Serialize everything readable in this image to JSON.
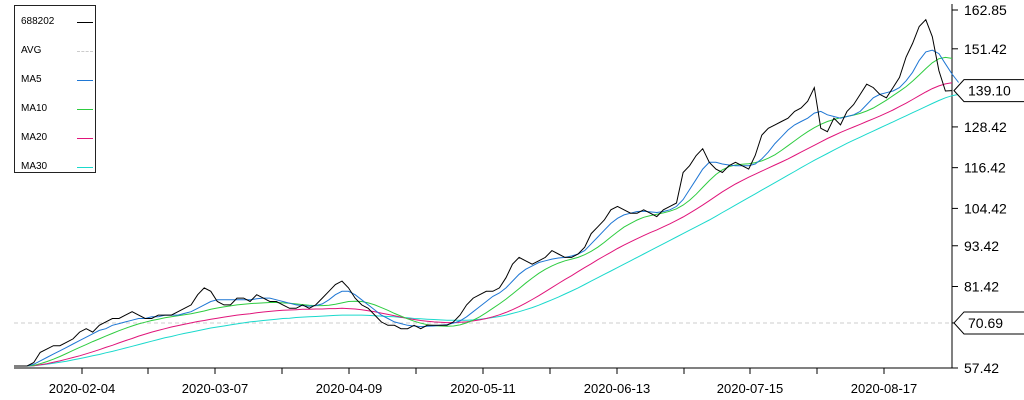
{
  "chart_data": {
    "type": "line",
    "x_tick_labels": [
      "2020-02-04",
      "2020-03-07",
      "2020-04-09",
      "2020-05-11",
      "2020-06-13",
      "2020-07-15",
      "2020-08-17"
    ],
    "y_tick_labels": [
      "162.85",
      "151.42",
      "139.10",
      "128.42",
      "116.42",
      "104.42",
      "93.42",
      "81.42",
      "70.69",
      "57.42"
    ],
    "ylim": [
      57.42,
      162.85
    ],
    "avg_value": 70.69,
    "last_value": 139.1,
    "legend": [
      {
        "name": "688202",
        "color": "#000000"
      },
      {
        "name": "AVG",
        "color": "#cccccc"
      },
      {
        "name": "MA5",
        "color": "#1f77d4"
      },
      {
        "name": "MA10",
        "color": "#2ecc40"
      },
      {
        "name": "MA20",
        "color": "#e0147a"
      },
      {
        "name": "MA30",
        "color": "#1ad9cc"
      }
    ],
    "series": [
      {
        "name": "688202",
        "color": "#000000",
        "values": [
          58,
          58,
          58,
          59,
          62,
          63,
          64,
          64,
          65,
          66,
          68,
          69,
          68,
          70,
          71,
          72,
          72,
          73,
          74,
          73,
          72,
          72,
          73,
          73,
          73,
          74,
          75,
          76,
          79,
          81,
          80,
          77,
          76,
          76,
          78,
          78,
          77,
          79,
          78,
          77,
          77,
          76,
          75,
          75,
          76,
          75,
          76,
          78,
          80,
          82,
          83,
          81,
          78,
          76,
          75,
          73,
          71,
          70,
          70,
          69,
          69,
          70,
          69,
          70,
          70,
          70,
          70,
          71,
          73,
          76,
          78,
          79,
          80,
          80,
          81,
          84,
          88,
          90,
          89,
          88,
          89,
          90,
          92,
          91,
          90,
          90,
          91,
          93,
          97,
          99,
          101,
          104,
          105,
          104,
          103,
          103,
          104,
          103,
          102,
          104,
          105,
          106,
          115,
          117,
          120,
          122,
          118,
          116,
          115,
          117,
          118,
          117,
          116,
          120,
          126,
          128,
          129,
          130,
          131,
          133,
          134,
          136,
          140,
          128,
          127,
          131,
          129,
          133,
          135,
          138,
          141,
          140,
          138,
          137,
          140,
          143,
          149,
          153,
          158,
          160,
          155,
          145,
          139,
          139.1
        ]
      },
      {
        "name": "MA5",
        "color": "#1f77d4",
        "values": [
          58,
          58,
          58,
          58.5,
          59.5,
          60.5,
          61.5,
          62.5,
          63.5,
          64.5,
          65.5,
          66.5,
          67.5,
          68.5,
          69,
          70,
          70.5,
          71,
          71.5,
          72,
          72,
          72.5,
          72.5,
          73,
          73,
          73,
          73.5,
          74,
          75,
          76,
          77,
          77.5,
          77.5,
          77.5,
          77.5,
          77.5,
          77.5,
          77.8,
          78,
          78,
          77.5,
          77,
          76.5,
          76,
          75.8,
          75.6,
          75.8,
          76.3,
          77.5,
          79,
          80,
          80,
          79,
          77.5,
          76,
          74.5,
          73,
          72,
          71,
          70.5,
          70,
          69.8,
          69.6,
          69.7,
          69.8,
          70,
          70.2,
          70.6,
          71.3,
          72.5,
          74,
          75.5,
          77,
          78.5,
          79.5,
          81,
          83,
          85,
          86.5,
          87.5,
          88.5,
          89,
          89.5,
          89.8,
          90,
          90.4,
          91,
          92,
          94,
          96,
          98,
          100,
          101.5,
          102.5,
          103,
          103.5,
          103.6,
          103.4,
          103.2,
          103.5,
          104,
          105,
          107,
          110,
          113,
          116,
          118,
          118,
          117.5,
          117.2,
          117,
          117,
          117,
          117.5,
          119,
          121,
          123.5,
          125.5,
          127.5,
          129,
          130,
          131,
          132.5,
          133,
          132,
          131.5,
          131,
          131.5,
          132,
          133,
          135,
          137,
          138,
          138.5,
          139,
          140,
          142,
          144.5,
          148,
          150.5,
          151,
          150,
          147,
          144,
          141.5
        ]
      },
      {
        "name": "MA10",
        "color": "#2ecc40",
        "values": [
          58,
          58,
          58,
          58.2,
          58.7,
          59.3,
          60,
          60.8,
          61.7,
          62.6,
          63.5,
          64.3,
          65.2,
          66,
          66.8,
          67.6,
          68.4,
          69.1,
          69.8,
          70.4,
          70.9,
          71.4,
          71.8,
          72.2,
          72.5,
          72.8,
          73.1,
          73.4,
          73.8,
          74.2,
          74.7,
          75.1,
          75.4,
          75.7,
          76,
          76.2,
          76.4,
          76.5,
          76.6,
          76.7,
          76.7,
          76.6,
          76.5,
          76.3,
          76.1,
          75.9,
          75.8,
          75.8,
          75.9,
          76.2,
          76.6,
          77,
          77.1,
          77,
          76.6,
          76,
          75.2,
          74.4,
          73.5,
          72.7,
          71.9,
          71.2,
          70.6,
          70.2,
          69.9,
          69.8,
          69.7,
          69.8,
          70.1,
          70.7,
          71.5,
          72.5,
          73.7,
          75,
          76.3,
          77.7,
          79.2,
          80.8,
          82.4,
          83.9,
          85.3,
          86.5,
          87.5,
          88.3,
          89,
          89.5,
          90,
          90.8,
          91.8,
          93,
          94.4,
          96,
          97.5,
          98.9,
          100,
          101,
          101.8,
          102.3,
          102.7,
          103.1,
          103.6,
          104.3,
          105.4,
          106.8,
          108.6,
          110.6,
          112.6,
          114.4,
          115.8,
          116.7,
          117.2,
          117.4,
          117.6,
          117.9,
          118.4,
          119.2,
          120.2,
          121.5,
          122.9,
          124.3,
          125.7,
          127,
          128.2,
          129.2,
          130,
          130.6,
          131.1,
          131.5,
          131.9,
          132.4,
          133.1,
          134,
          135.1,
          136.3,
          137.6,
          138.9,
          140.3,
          141.9,
          143.7,
          145.6,
          147.3,
          148.5,
          148.9,
          148.6
        ]
      },
      {
        "name": "MA20",
        "color": "#e0147a",
        "values": [
          58,
          58,
          58,
          58.1,
          58.4,
          58.7,
          59.1,
          59.5,
          60,
          60.5,
          61,
          61.6,
          62.2,
          62.8,
          63.5,
          64.1,
          64.8,
          65.5,
          66.1,
          66.8,
          67.4,
          68,
          68.5,
          69,
          69.5,
          69.9,
          70.3,
          70.7,
          71.1,
          71.4,
          71.8,
          72.1,
          72.4,
          72.7,
          73,
          73.2,
          73.4,
          73.7,
          73.9,
          74.1,
          74.3,
          74.4,
          74.5,
          74.6,
          74.7,
          74.7,
          74.8,
          74.8,
          74.9,
          74.9,
          75,
          74.9,
          74.8,
          74.6,
          74.3,
          74,
          73.6,
          73.2,
          72.8,
          72.4,
          72,
          71.7,
          71.4,
          71.2,
          71,
          70.9,
          70.8,
          70.8,
          70.9,
          71,
          71.3,
          71.6,
          72,
          72.5,
          73.1,
          73.8,
          74.6,
          75.5,
          76.5,
          77.6,
          78.7,
          79.9,
          81.1,
          82.3,
          83.5,
          84.6,
          85.8,
          87,
          88.1,
          89.3,
          90.4,
          91.5,
          92.6,
          93.6,
          94.6,
          95.5,
          96.4,
          97.3,
          98.1,
          99,
          99.9,
          100.9,
          101.9,
          103,
          104.2,
          105.4,
          106.7,
          108,
          109.3,
          110.5,
          111.6,
          112.6,
          113.6,
          114.5,
          115.4,
          116.3,
          117.2,
          118.1,
          119,
          120,
          121,
          122,
          123,
          124,
          125,
          125.9,
          126.8,
          127.6,
          128.4,
          129.2,
          130,
          130.8,
          131.6,
          132.5,
          133.4,
          134.4,
          135.4,
          136.5,
          137.6,
          138.7,
          139.7,
          140.5,
          141.1,
          141.4
        ]
      },
      {
        "name": "MA30",
        "color": "#1ad9cc",
        "values": [
          58,
          58,
          58,
          58.1,
          58.3,
          58.5,
          58.8,
          59.1,
          59.4,
          59.8,
          60.2,
          60.6,
          61,
          61.4,
          61.9,
          62.3,
          62.8,
          63.3,
          63.8,
          64.3,
          64.8,
          65.3,
          65.8,
          66.3,
          66.7,
          67.2,
          67.6,
          68,
          68.4,
          68.8,
          69.2,
          69.5,
          69.8,
          70.1,
          70.4,
          70.7,
          71,
          71.2,
          71.4,
          71.6,
          71.8,
          72,
          72.1,
          72.3,
          72.4,
          72.5,
          72.6,
          72.7,
          72.8,
          72.9,
          73,
          73,
          73,
          73,
          72.9,
          72.8,
          72.7,
          72.6,
          72.5,
          72.3,
          72.2,
          72,
          71.9,
          71.8,
          71.7,
          71.6,
          71.5,
          71.5,
          71.5,
          71.5,
          71.6,
          71.8,
          72,
          72.3,
          72.6,
          73,
          73.5,
          74,
          74.6,
          75.2,
          75.9,
          76.7,
          77.5,
          78.3,
          79.2,
          80.1,
          81,
          82,
          83,
          84,
          85,
          86,
          87,
          88,
          89,
          90,
          91,
          92,
          93,
          94,
          95,
          96,
          97,
          98,
          99,
          100,
          101,
          102.1,
          103.2,
          104.3,
          105.4,
          106.5,
          107.6,
          108.7,
          109.8,
          110.9,
          112,
          113.1,
          114.2,
          115.3,
          116.4,
          117.5,
          118.6,
          119.6,
          120.6,
          121.6,
          122.6,
          123.6,
          124.5,
          125.4,
          126.3,
          127.2,
          128.1,
          129,
          129.9,
          130.8,
          131.7,
          132.6,
          133.5,
          134.4,
          135.3,
          136.2,
          137,
          137.6,
          138,
          138.3
        ]
      }
    ]
  }
}
